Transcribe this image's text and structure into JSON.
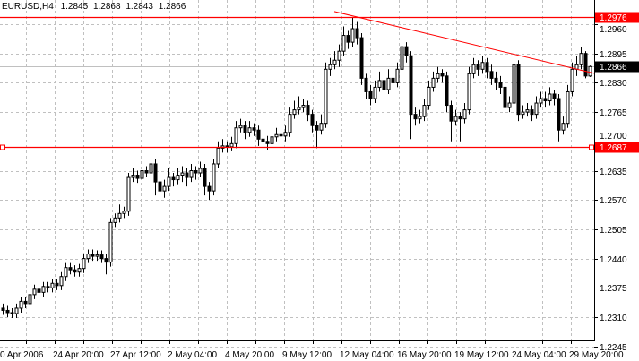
{
  "header": {
    "symbol": "EURUSD,H4",
    "open": "1.2845",
    "high": "1.2868",
    "low": "1.2843",
    "close": "1.2866"
  },
  "colors": {
    "background": "#ffffff",
    "grid": "#c0c0c0",
    "bull_body": "#ffffff",
    "bear_body": "#000000",
    "line_objects": "#ff0000",
    "current_price_line": "#c0c0c0"
  },
  "chart_data": {
    "type": "candlestick",
    "title": "EURUSD,H4",
    "grid": true,
    "ylim": [
      1.2245,
      1.2985
    ],
    "y_ticks": [
      "1.2960",
      "1.2895",
      "1.2830",
      "1.2765",
      "1.2700",
      "1.2635",
      "1.2570",
      "1.2505",
      "1.2440",
      "1.2375",
      "1.2310",
      "1.2245"
    ],
    "x_tick_labels": [
      "0 Apr 2006",
      "24 Apr 20:00",
      "27 Apr 12:00",
      "2 May 04:00",
      "4 May 20:00",
      "9 May 12:00",
      "12 May 04:00",
      "16 May 20:00",
      "19 May 12:00",
      "24 May 04:00",
      "29 May 20:00"
    ],
    "bars_per_x_label": 12.8,
    "candles_ohlc": [
      [
        1.233,
        1.234,
        1.2315,
        1.2325
      ],
      [
        1.2325,
        1.2335,
        1.231,
        1.232
      ],
      [
        1.232,
        1.233,
        1.2308,
        1.2318
      ],
      [
        1.2318,
        1.234,
        1.2308,
        1.233
      ],
      [
        1.233,
        1.2355,
        1.232,
        1.2345
      ],
      [
        1.2345,
        1.2355,
        1.233,
        1.234
      ],
      [
        1.234,
        1.237,
        1.233,
        1.236
      ],
      [
        1.236,
        1.2382,
        1.235,
        1.2372
      ],
      [
        1.2372,
        1.2382,
        1.2355,
        1.2365
      ],
      [
        1.2365,
        1.2388,
        1.2355,
        1.2378
      ],
      [
        1.2378,
        1.2388,
        1.2365,
        1.2375
      ],
      [
        1.2375,
        1.2395,
        1.2365,
        1.2385
      ],
      [
        1.2385,
        1.2395,
        1.237,
        1.238
      ],
      [
        1.238,
        1.241,
        1.237,
        1.24
      ],
      [
        1.24,
        1.243,
        1.239,
        1.242
      ],
      [
        1.242,
        1.243,
        1.2405,
        1.2415
      ],
      [
        1.2415,
        1.2425,
        1.24,
        1.241
      ],
      [
        1.241,
        1.2428,
        1.24,
        1.2418
      ],
      [
        1.2418,
        1.245,
        1.2408,
        1.244
      ],
      [
        1.244,
        1.246,
        1.243,
        1.245
      ],
      [
        1.245,
        1.246,
        1.2435,
        1.2445
      ],
      [
        1.2445,
        1.2458,
        1.2435,
        1.2448
      ],
      [
        1.2448,
        1.2458,
        1.243,
        1.244
      ],
      [
        1.244,
        1.245,
        1.2405,
        1.2432
      ],
      [
        1.2432,
        1.253,
        1.2422,
        1.252
      ],
      [
        1.252,
        1.254,
        1.251,
        1.253
      ],
      [
        1.253,
        1.256,
        1.252,
        1.254
      ],
      [
        1.254,
        1.2555,
        1.253,
        1.2545
      ],
      [
        1.2545,
        1.263,
        1.2535,
        1.262
      ],
      [
        1.262,
        1.264,
        1.261,
        1.2625
      ],
      [
        1.2625,
        1.2635,
        1.2608,
        1.2618
      ],
      [
        1.2618,
        1.265,
        1.2608,
        1.2635
      ],
      [
        1.2635,
        1.2645,
        1.262,
        1.263
      ],
      [
        1.263,
        1.269,
        1.262,
        1.265
      ],
      [
        1.265,
        1.266,
        1.258,
        1.261
      ],
      [
        1.261,
        1.262,
        1.257,
        1.259
      ],
      [
        1.259,
        1.2615,
        1.2575,
        1.26
      ],
      [
        1.26,
        1.264,
        1.259,
        1.262
      ],
      [
        1.262,
        1.263,
        1.26,
        1.2615
      ],
      [
        1.2615,
        1.264,
        1.2605,
        1.2625
      ],
      [
        1.2625,
        1.2645,
        1.261,
        1.263
      ],
      [
        1.263,
        1.264,
        1.26,
        1.262
      ],
      [
        1.262,
        1.265,
        1.261,
        1.2635
      ],
      [
        1.2635,
        1.2645,
        1.2615,
        1.263
      ],
      [
        1.263,
        1.2655,
        1.262,
        1.264
      ],
      [
        1.264,
        1.265,
        1.258,
        1.26
      ],
      [
        1.26,
        1.261,
        1.257,
        1.259
      ],
      [
        1.259,
        1.266,
        1.258,
        1.265
      ],
      [
        1.265,
        1.27,
        1.264,
        1.2685
      ],
      [
        1.2685,
        1.2705,
        1.2675,
        1.269
      ],
      [
        1.269,
        1.27,
        1.2675,
        1.2688
      ],
      [
        1.2688,
        1.271,
        1.2678,
        1.2695
      ],
      [
        1.2695,
        1.2745,
        1.2685,
        1.273
      ],
      [
        1.273,
        1.275,
        1.272,
        1.2735
      ],
      [
        1.2735,
        1.2745,
        1.2705,
        1.272
      ],
      [
        1.272,
        1.2745,
        1.271,
        1.273
      ],
      [
        1.273,
        1.274,
        1.2712,
        1.2725
      ],
      [
        1.2725,
        1.2735,
        1.269,
        1.2705
      ],
      [
        1.2705,
        1.2715,
        1.2688,
        1.27
      ],
      [
        1.27,
        1.2712,
        1.268,
        1.2695
      ],
      [
        1.2695,
        1.2725,
        1.2685,
        1.271
      ],
      [
        1.271,
        1.273,
        1.27,
        1.2715
      ],
      [
        1.2715,
        1.2728,
        1.27,
        1.2712
      ],
      [
        1.2712,
        1.2735,
        1.27,
        1.272
      ],
      [
        1.272,
        1.2775,
        1.271,
        1.276
      ],
      [
        1.276,
        1.279,
        1.275,
        1.277
      ],
      [
        1.277,
        1.28,
        1.276,
        1.2775
      ],
      [
        1.2775,
        1.2795,
        1.2765,
        1.278
      ],
      [
        1.278,
        1.279,
        1.2745,
        1.276
      ],
      [
        1.276,
        1.277,
        1.272,
        1.2735
      ],
      [
        1.2735,
        1.2745,
        1.2685,
        1.2725
      ],
      [
        1.2725,
        1.276,
        1.2715,
        1.274
      ],
      [
        1.274,
        1.2875,
        1.273,
        1.286
      ],
      [
        1.286,
        1.2885,
        1.2845,
        1.287
      ],
      [
        1.287,
        1.29,
        1.286,
        1.288
      ],
      [
        1.288,
        1.2915,
        1.2865,
        1.29
      ],
      [
        1.29,
        1.2955,
        1.289,
        1.2935
      ],
      [
        1.2935,
        1.2945,
        1.2905,
        1.292
      ],
      [
        1.292,
        1.2976,
        1.291,
        1.295
      ],
      [
        1.295,
        1.2965,
        1.2915,
        1.293
      ],
      [
        1.293,
        1.294,
        1.2825,
        1.284
      ],
      [
        1.284,
        1.285,
        1.2795,
        1.281
      ],
      [
        1.281,
        1.2825,
        1.278,
        1.2795
      ],
      [
        1.2795,
        1.2835,
        1.2785,
        1.282
      ],
      [
        1.282,
        1.2855,
        1.281,
        1.2835
      ],
      [
        1.2835,
        1.2845,
        1.28,
        1.2815
      ],
      [
        1.2815,
        1.286,
        1.2805,
        1.284
      ],
      [
        1.284,
        1.2855,
        1.2815,
        1.283
      ],
      [
        1.283,
        1.2875,
        1.282,
        1.286
      ],
      [
        1.286,
        1.2925,
        1.285,
        1.291
      ],
      [
        1.291,
        1.292,
        1.2875,
        1.289
      ],
      [
        1.289,
        1.29,
        1.2705,
        1.276
      ],
      [
        1.276,
        1.2775,
        1.2735,
        1.275
      ],
      [
        1.275,
        1.277,
        1.274,
        1.2755
      ],
      [
        1.2755,
        1.2795,
        1.2745,
        1.278
      ],
      [
        1.278,
        1.2835,
        1.277,
        1.282
      ],
      [
        1.282,
        1.2855,
        1.281,
        1.284
      ],
      [
        1.284,
        1.2865,
        1.283,
        1.285
      ],
      [
        1.285,
        1.286,
        1.283,
        1.2845
      ],
      [
        1.2845,
        1.2855,
        1.2765,
        1.278
      ],
      [
        1.278,
        1.279,
        1.27,
        1.2745
      ],
      [
        1.2745,
        1.277,
        1.2735,
        1.2755
      ],
      [
        1.2755,
        1.2765,
        1.27,
        1.275
      ],
      [
        1.275,
        1.2785,
        1.274,
        1.277
      ],
      [
        1.277,
        1.2865,
        1.276,
        1.285
      ],
      [
        1.285,
        1.2885,
        1.284,
        1.287
      ],
      [
        1.287,
        1.288,
        1.2845,
        1.286
      ],
      [
        1.286,
        1.289,
        1.285,
        1.2875
      ],
      [
        1.2875,
        1.2885,
        1.284,
        1.2855
      ],
      [
        1.2855,
        1.287,
        1.2825,
        1.284
      ],
      [
        1.284,
        1.2855,
        1.2815,
        1.283
      ],
      [
        1.283,
        1.2845,
        1.2805,
        1.282
      ],
      [
        1.282,
        1.283,
        1.276,
        1.2775
      ],
      [
        1.2775,
        1.28,
        1.2765,
        1.2785
      ],
      [
        1.2785,
        1.2885,
        1.2775,
        1.287
      ],
      [
        1.287,
        1.288,
        1.2745,
        1.276
      ],
      [
        1.276,
        1.278,
        1.275,
        1.2765
      ],
      [
        1.2765,
        1.2785,
        1.2755,
        1.277
      ],
      [
        1.277,
        1.278,
        1.2745,
        1.276
      ],
      [
        1.276,
        1.28,
        1.275,
        1.2785
      ],
      [
        1.2785,
        1.281,
        1.2775,
        1.2795
      ],
      [
        1.2795,
        1.281,
        1.2775,
        1.279
      ],
      [
        1.279,
        1.282,
        1.278,
        1.2805
      ],
      [
        1.2805,
        1.2815,
        1.278,
        1.2795
      ],
      [
        1.2795,
        1.2805,
        1.27,
        1.2725
      ],
      [
        1.2725,
        1.2755,
        1.2715,
        1.274
      ],
      [
        1.274,
        1.2825,
        1.273,
        1.281
      ],
      [
        1.281,
        1.2875,
        1.28,
        1.286
      ],
      [
        1.286,
        1.289,
        1.2845,
        1.287
      ],
      [
        1.287,
        1.291,
        1.286,
        1.2895
      ],
      [
        1.2895,
        1.29,
        1.284,
        1.2845
      ],
      [
        1.2845,
        1.2868,
        1.2843,
        1.2866
      ]
    ],
    "horizontal_lines": [
      {
        "price": 1.2976,
        "label": "1.2976",
        "color": "#ff0000"
      },
      {
        "price": 1.2687,
        "label": "1.2687",
        "color": "#ff0000"
      }
    ],
    "trendline": {
      "from": {
        "bar": 74,
        "price": 1.2988
      },
      "to": {
        "bar": 132,
        "price": 1.2851
      },
      "color": "#ff0000"
    },
    "current_price": {
      "price": 1.2866,
      "label": "1.2866"
    }
  }
}
